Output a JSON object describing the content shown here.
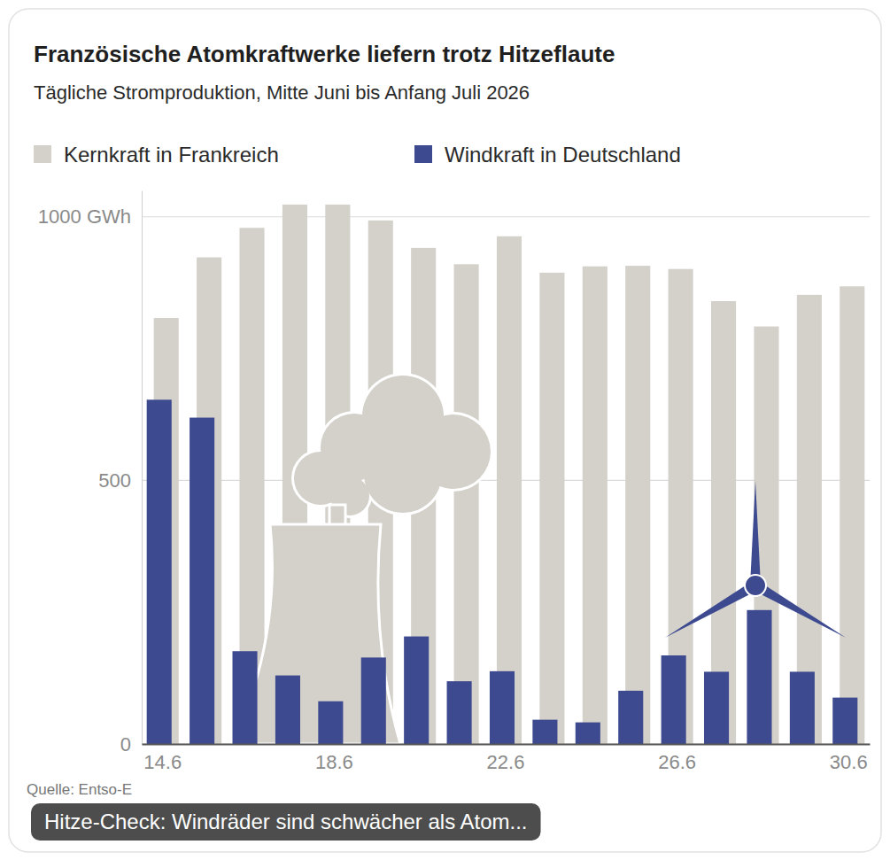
{
  "chart_data": {
    "type": "bar",
    "title": "Französische Atomkraftwerke liefern trotz Hitzeflaute",
    "subtitle": "Tägliche Stromproduktion, Mitte Juni bis Anfang Juli 2026",
    "categories": [
      "14.6",
      null,
      null,
      null,
      "18.6",
      null,
      null,
      null,
      "22.6",
      null,
      null,
      null,
      "26.6",
      null,
      null,
      null,
      "30.6"
    ],
    "series": [
      {
        "name": "Kernkraft in Frankreich",
        "color": "#d4d0ca",
        "values": [
          808,
          923,
          979,
          1023,
          1023,
          993,
          941,
          910,
          963,
          894,
          906,
          907,
          901,
          840,
          792,
          852,
          868
        ]
      },
      {
        "name": "Windkraft in Deutschland",
        "color": "#3d4a8f",
        "values": [
          653,
          619,
          176,
          130,
          81,
          164,
          204,
          119,
          138,
          46,
          41,
          101,
          168,
          137,
          254,
          137,
          88
        ]
      }
    ],
    "ylim": [
      0,
      1050
    ],
    "yticks": [
      0,
      500,
      {
        "value": 1000,
        "label": "1000 GWh"
      }
    ],
    "grid": true,
    "legend": "top-left",
    "source": "Quelle: Entso-E",
    "caption": "Hitze-Check: Windräder sind schwächer als Atom..."
  }
}
